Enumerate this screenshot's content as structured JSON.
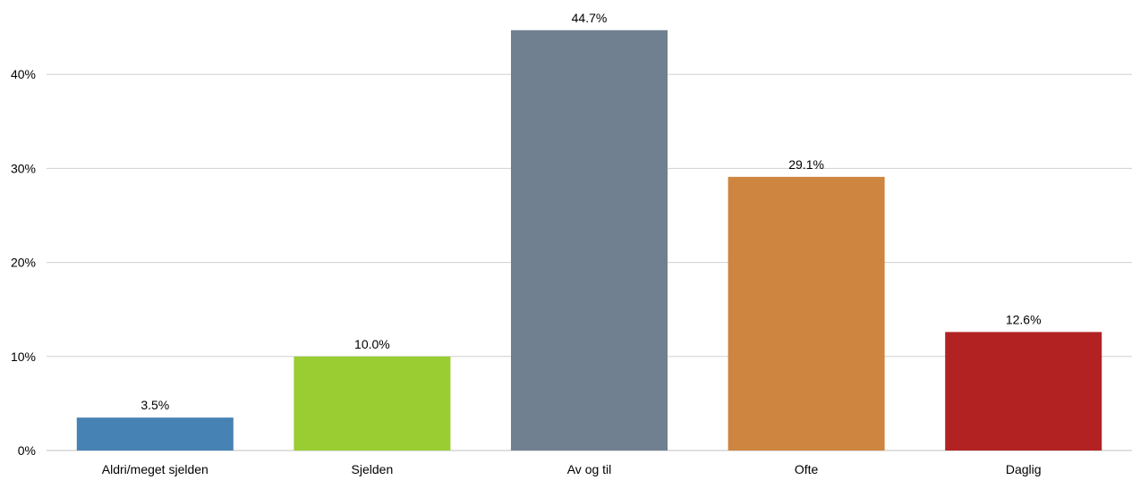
{
  "chart_data": {
    "type": "bar",
    "categories": [
      "Aldri/meget sjelden",
      "Sjelden",
      "Av og til",
      "Ofte",
      "Daglig"
    ],
    "values": [
      3.5,
      10.0,
      44.7,
      29.1,
      12.6
    ],
    "data_labels": [
      "3.5%",
      "10.0%",
      "44.7%",
      "29.1%",
      "12.6%"
    ],
    "colors": [
      "#4682b4",
      "#9acd32",
      "#708090",
      "#cd853f",
      "#b22222"
    ],
    "yticks": [
      0,
      10,
      20,
      30,
      40
    ],
    "ytick_labels": [
      "0%",
      "10%",
      "20%",
      "30%",
      "40%"
    ],
    "ylim": [
      0,
      45
    ],
    "grid": true,
    "legend": "none"
  }
}
